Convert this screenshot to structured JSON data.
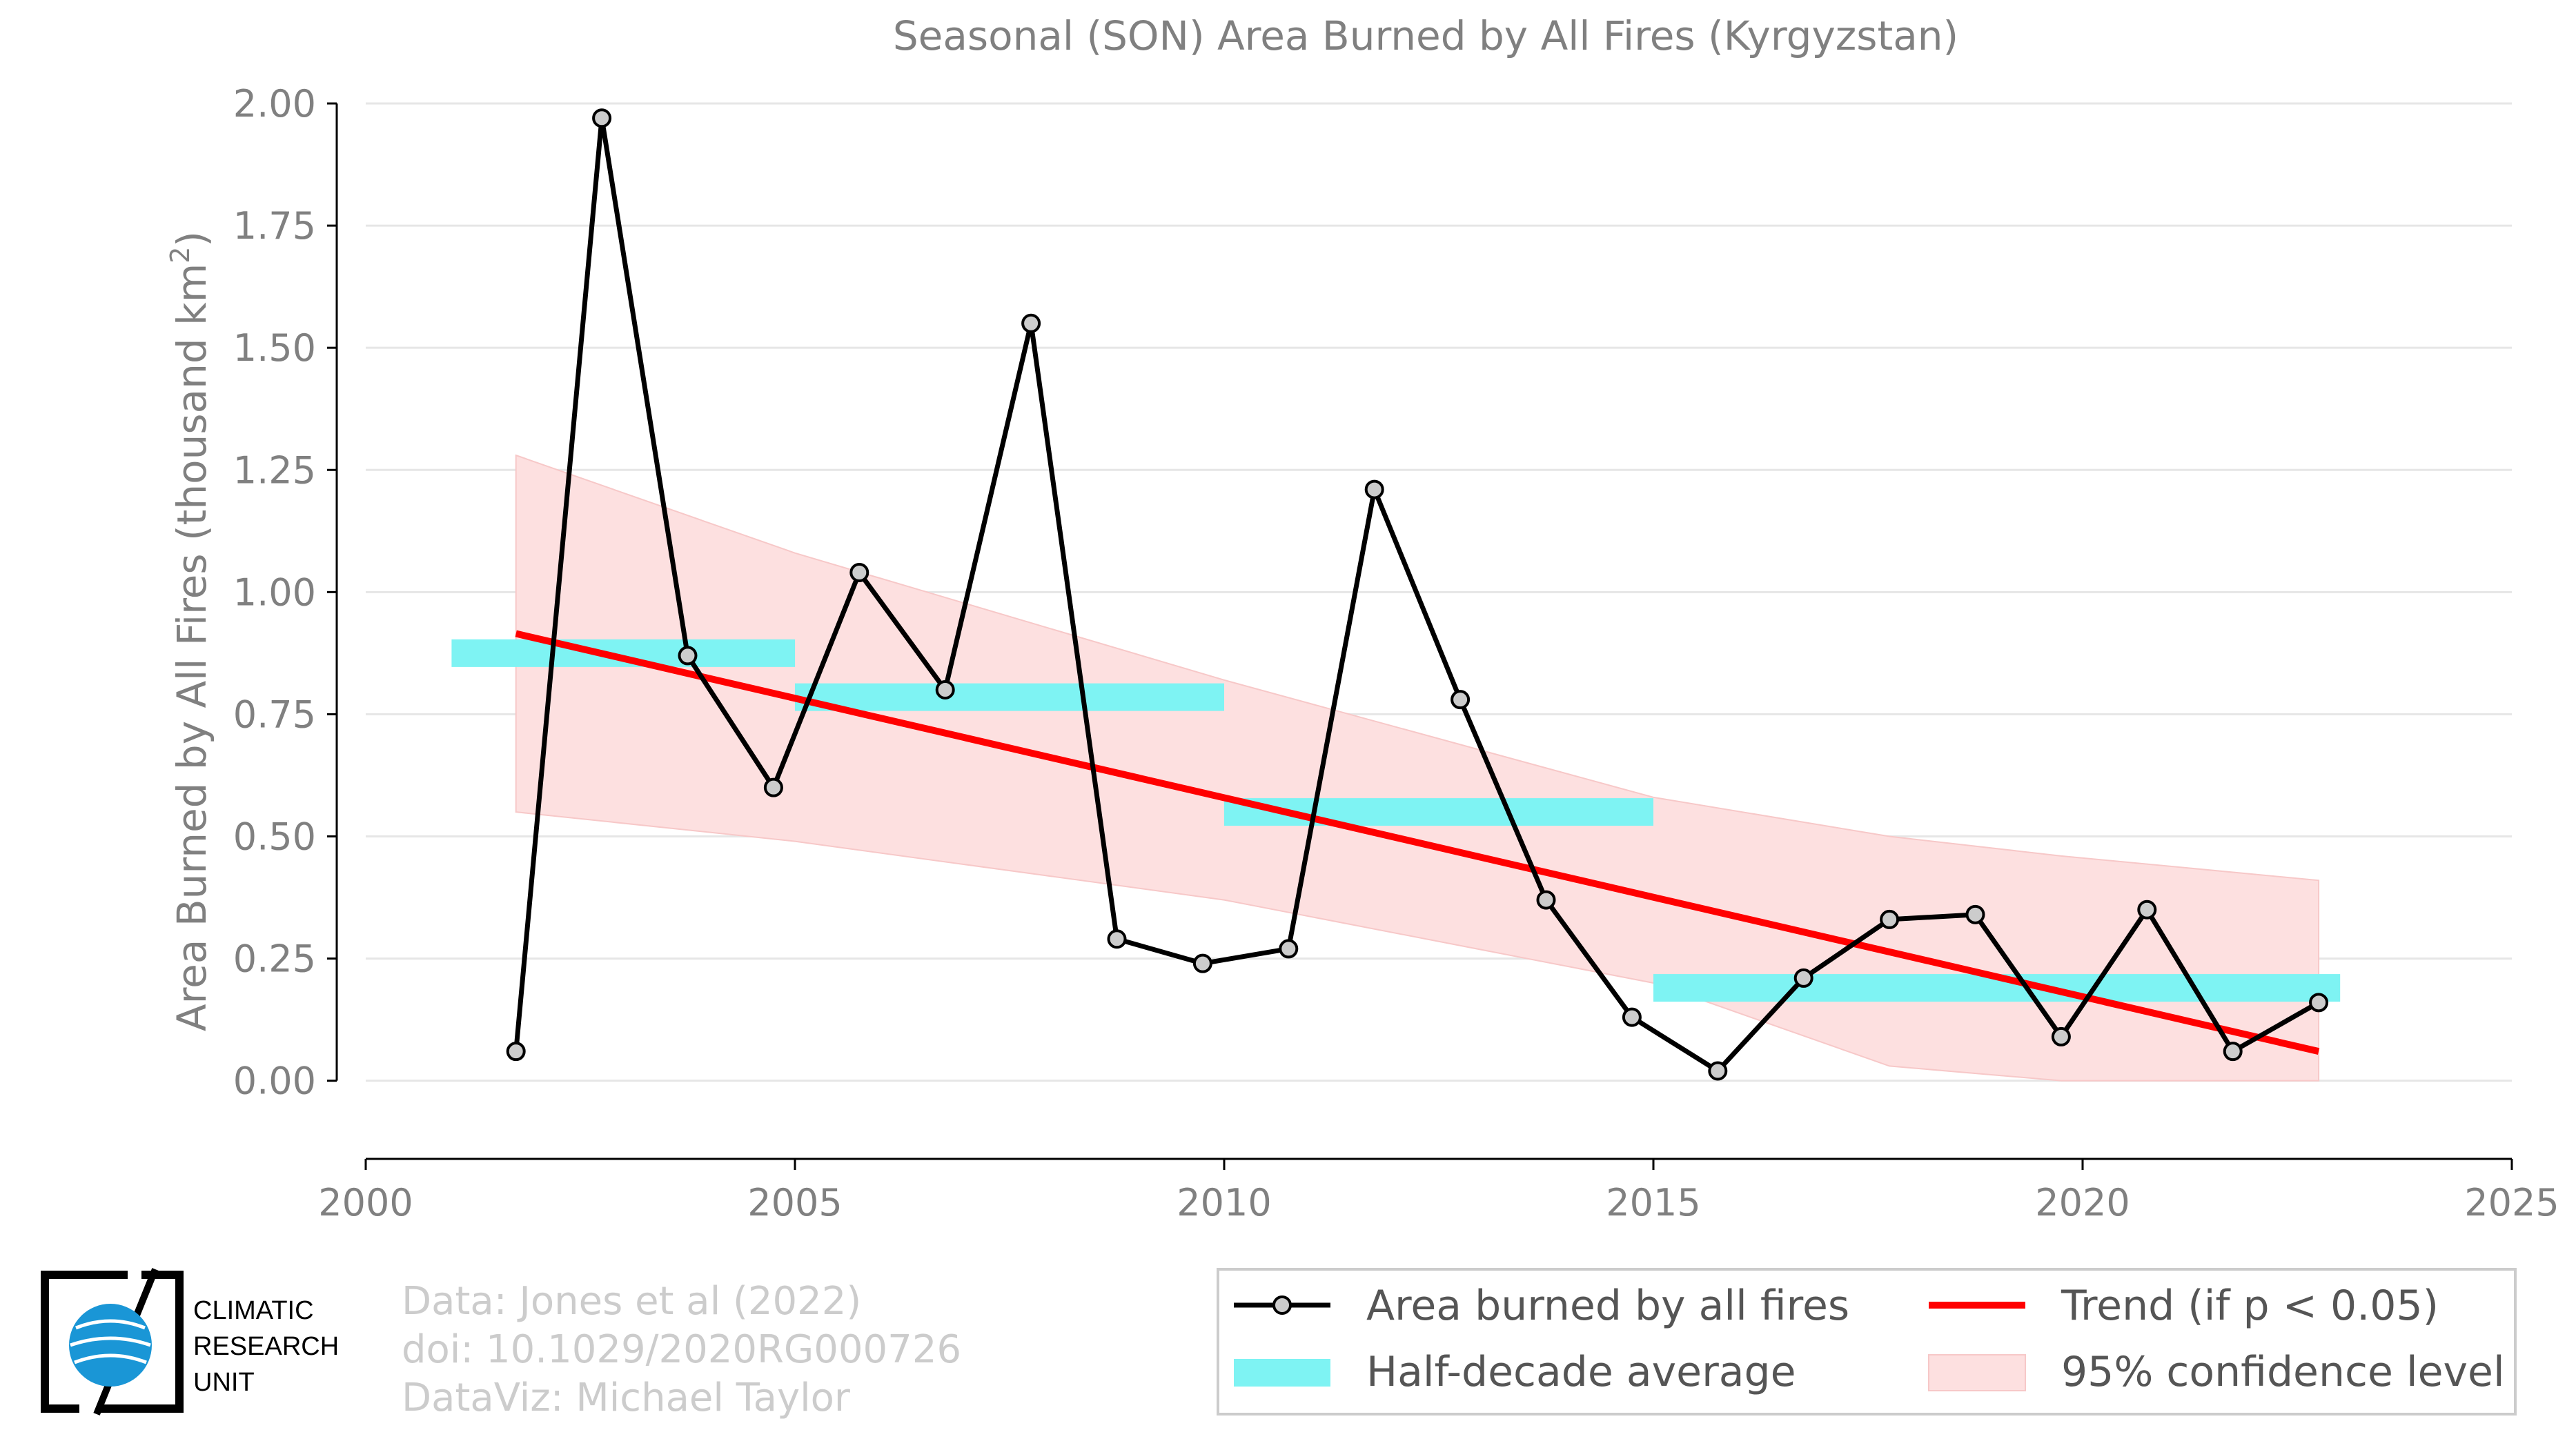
{
  "chart_data": {
    "type": "line",
    "title": "Seasonal (SON) Area Burned by All Fires (Kyrgyzstan)",
    "xlabel": "",
    "ylabel": "Area Burned by All Fires (thousand km",
    "ylabel_sup": "2",
    "ylabel_end": ")",
    "xlim": [
      2000,
      2025
    ],
    "ylim": [
      -0.16,
      2.0
    ],
    "xticks": [
      2000,
      2005,
      2010,
      2015,
      2020,
      2025
    ],
    "xtick_labels": [
      "2000",
      "2005",
      "2010",
      "2015",
      "2020",
      "2025"
    ],
    "yticks": [
      0,
      0.25,
      0.5,
      0.75,
      1.0,
      1.25,
      1.5,
      1.75,
      2.0
    ],
    "ytick_labels": [
      "0.00",
      "0.25",
      "0.50",
      "0.75",
      "1.00",
      "1.25",
      "1.50",
      "1.75",
      "2.00"
    ],
    "grid": true,
    "series": [
      {
        "name": "Area burned by all fires",
        "color": "#000000",
        "marker_fill": "#cccccc",
        "x": [
          2001.75,
          2002.75,
          2003.75,
          2004.75,
          2005.75,
          2006.75,
          2007.75,
          2008.75,
          2009.75,
          2010.75,
          2011.75,
          2012.75,
          2013.75,
          2014.75,
          2015.75,
          2016.75,
          2017.75,
          2018.75,
          2019.75,
          2020.75,
          2021.75,
          2022.75
        ],
        "values": [
          0.06,
          1.97,
          0.87,
          0.6,
          1.04,
          0.8,
          1.55,
          0.29,
          0.24,
          0.27,
          1.21,
          0.78,
          0.37,
          0.13,
          0.02,
          0.21,
          0.33,
          0.34,
          0.09,
          0.35,
          0.06,
          0.16
        ]
      }
    ],
    "half_decade_average": {
      "name": "Half-decade average",
      "color": "#7ef3f3",
      "segments": [
        {
          "x0": 2001.0,
          "x1": 2005.0,
          "value": 0.875
        },
        {
          "x0": 2005.0,
          "x1": 2010.0,
          "value": 0.785
        },
        {
          "x0": 2010.0,
          "x1": 2015.0,
          "value": 0.55
        },
        {
          "x0": 2015.0,
          "x1": 2023.0,
          "value": 0.19
        }
      ]
    },
    "trend": {
      "name": "Trend (if p < 0.05)",
      "color": "#ff0000",
      "x": [
        2001.75,
        2022.75
      ],
      "values": [
        0.915,
        0.06
      ]
    },
    "confidence_band": {
      "name": "95% confidence level",
      "color": "#fde0e0",
      "x": [
        2001.75,
        2005,
        2010,
        2015,
        2017.75,
        2019.75,
        2022.75
      ],
      "upper": [
        1.28,
        1.08,
        0.82,
        0.58,
        0.5,
        0.46,
        0.41
      ],
      "lower": [
        0.55,
        0.49,
        0.37,
        0.2,
        0.03,
        0.0,
        0.0
      ]
    },
    "legend_position": "bottom-right",
    "legend": [
      "Area burned by all fires",
      "Trend (if p < 0.05)",
      "Half-decade average",
      "95% confidence level"
    ]
  },
  "credits": {
    "line1": "Data: Jones et al (2022)",
    "line2": "doi: 10.1029/2020RG000726",
    "line3": "DataViz: Michael Taylor"
  },
  "logo": {
    "line1": "CLIMATIC",
    "line2": "RESEARCH",
    "line3": "UNIT"
  }
}
